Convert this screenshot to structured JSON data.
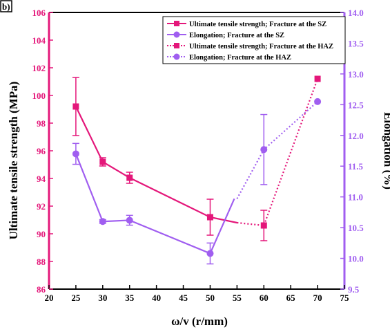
{
  "panel_label": "b)",
  "colors": {
    "uts": "#e4177a",
    "elong": "#a05ef0",
    "axis": "#000000"
  },
  "chart_data": {
    "type": "line",
    "xlabel": "ω/v (r/mm)",
    "ylabel_left": "Ultimate tensile strength (MPa)",
    "ylabel_right": "Elongation (%)",
    "xlim": [
      20,
      75
    ],
    "ylim_left": [
      86,
      106
    ],
    "ylim_right": [
      9.5,
      14.0
    ],
    "x_ticks": [
      "20",
      "25",
      "30",
      "35",
      "40",
      "45",
      "50",
      "55",
      "60",
      "65",
      "70",
      "75"
    ],
    "y_left_ticks": [
      "86",
      "88",
      "90",
      "92",
      "94",
      "96",
      "98",
      "100",
      "102",
      "104",
      "106"
    ],
    "y_right_ticks": [
      "9.5",
      "10.0",
      "10.5",
      "11.0",
      "11.5",
      "12.0",
      "12.5",
      "13.0",
      "13.5",
      "14.0"
    ],
    "legend_position": "top-right",
    "series": [
      {
        "name": "Ultimate tensile strength; Fracture at the SZ",
        "axis": "left",
        "style": "solid",
        "marker": "square",
        "color": "#e4177a",
        "points": [
          {
            "x": 25,
            "y": 99.2,
            "err": 2.1
          },
          {
            "x": 30,
            "y": 95.2,
            "err": 0.3
          },
          {
            "x": 35,
            "y": 94.05,
            "err": 0.4
          },
          {
            "x": 50,
            "y": 91.2,
            "err": 1.3
          }
        ],
        "trend_to": {
          "x": 55,
          "y": 90.8
        }
      },
      {
        "name": "Elongation; Fracture at the SZ",
        "axis": "right",
        "style": "solid",
        "marker": "circle",
        "color": "#a05ef0",
        "points": [
          {
            "x": 25,
            "y": 11.7,
            "err": 0.17
          },
          {
            "x": 30,
            "y": 10.6,
            "err": 0.03
          },
          {
            "x": 35,
            "y": 10.62,
            "err": 0.08
          },
          {
            "x": 50,
            "y": 10.08,
            "err": 0.17
          }
        ],
        "trend_to": {
          "x": 54.5,
          "y": 10.97
        }
      },
      {
        "name": "Ultimate tensile strength; Fracture at the HAZ",
        "axis": "left",
        "style": "dotted",
        "marker": "square",
        "color": "#e4177a",
        "points": [
          {
            "x": 55,
            "y": 90.8,
            "err": 0
          },
          {
            "x": 60,
            "y": 90.6,
            "err": 1.1
          },
          {
            "x": 70,
            "y": 101.2,
            "err": 0
          }
        ]
      },
      {
        "name": "Elongation; Fracture at the HAZ",
        "axis": "right",
        "style": "dotted",
        "marker": "circle",
        "color": "#a05ef0",
        "points": [
          {
            "x": 55,
            "y": 10.97,
            "err": 0
          },
          {
            "x": 60,
            "y": 11.77,
            "err": 0.57
          },
          {
            "x": 70,
            "y": 12.55,
            "err": 0
          }
        ]
      }
    ]
  }
}
